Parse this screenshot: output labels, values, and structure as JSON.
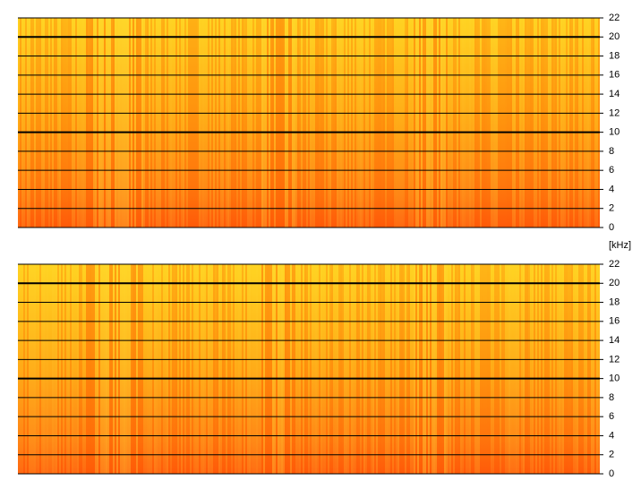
{
  "chart_data": [
    {
      "type": "spectrogram",
      "ylabel": "[kHz]",
      "ylim": [
        0,
        22
      ],
      "yticks": [
        0,
        2,
        4,
        6,
        8,
        10,
        12,
        14,
        16,
        18,
        20,
        22
      ],
      "major_yticks": [
        10,
        20
      ],
      "grid": true
    },
    {
      "type": "spectrogram",
      "ylim": [
        0,
        22
      ],
      "yticks": [
        0,
        2,
        4,
        6,
        8,
        10,
        12,
        14,
        16,
        18,
        20,
        22
      ],
      "major_yticks": [
        10,
        20
      ],
      "grid": true
    }
  ]
}
